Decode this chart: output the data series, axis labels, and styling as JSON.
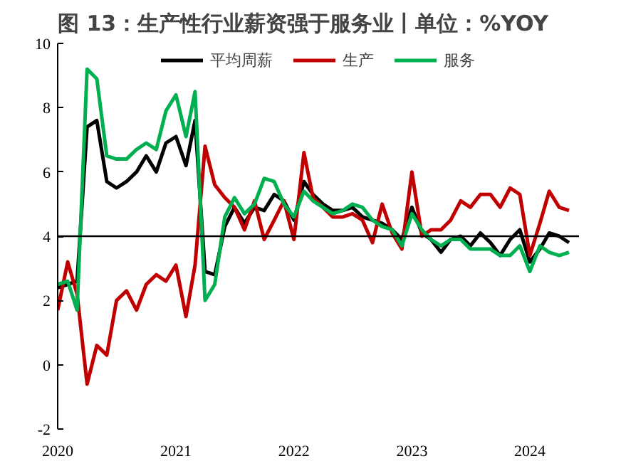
{
  "chart_data": {
    "type": "line",
    "title": "图 13：生产性行业薪资强于服务业丨单位：%YOY",
    "x": [
      "2020-01",
      "2020-02",
      "2020-03",
      "2020-04",
      "2020-05",
      "2020-06",
      "2020-07",
      "2020-08",
      "2020-09",
      "2020-10",
      "2020-11",
      "2020-12",
      "2021-01",
      "2021-02",
      "2021-03",
      "2021-04",
      "2021-05",
      "2021-06",
      "2021-07",
      "2021-08",
      "2021-09",
      "2021-10",
      "2021-11",
      "2021-12",
      "2022-01",
      "2022-02",
      "2022-03",
      "2022-04",
      "2022-05",
      "2022-06",
      "2022-07",
      "2022-08",
      "2022-09",
      "2022-10",
      "2022-11",
      "2022-12",
      "2023-01",
      "2023-02",
      "2023-03",
      "2023-04",
      "2023-05",
      "2023-06",
      "2023-07",
      "2023-08",
      "2023-09",
      "2023-10",
      "2023-11",
      "2023-12",
      "2024-01",
      "2024-02",
      "2024-03",
      "2024-04",
      "2024-05"
    ],
    "series": [
      {
        "name": "平均周薪",
        "color": "#000000",
        "values": [
          2.4,
          2.5,
          2.6,
          7.4,
          7.6,
          5.7,
          5.5,
          5.7,
          6.0,
          6.5,
          6.0,
          6.9,
          7.1,
          6.2,
          7.6,
          2.9,
          2.8,
          4.3,
          4.9,
          4.4,
          4.9,
          4.8,
          5.3,
          5.1,
          4.5,
          5.7,
          5.3,
          5.0,
          4.8,
          4.8,
          4.9,
          4.6,
          4.5,
          4.4,
          4.2,
          3.9,
          4.9,
          4.1,
          3.9,
          3.5,
          3.9,
          4.0,
          3.7,
          4.1,
          3.8,
          3.4,
          3.9,
          4.2,
          3.2,
          3.6,
          4.1,
          4.0,
          3.8
        ]
      },
      {
        "name": "生产",
        "color": "#c00000",
        "values": [
          1.7,
          3.2,
          2.2,
          -0.6,
          0.6,
          0.3,
          2.0,
          2.3,
          1.7,
          2.5,
          2.8,
          2.6,
          3.1,
          1.5,
          3.1,
          6.8,
          5.6,
          5.2,
          4.9,
          4.2,
          5.1,
          3.9,
          4.5,
          5.1,
          3.9,
          6.6,
          5.2,
          4.9,
          4.6,
          4.6,
          4.7,
          4.5,
          3.8,
          5.0,
          4.1,
          3.6,
          6.0,
          4.0,
          4.2,
          4.2,
          4.5,
          5.1,
          4.9,
          5.3,
          5.3,
          4.9,
          5.5,
          5.3,
          3.4,
          4.4,
          5.4,
          4.9,
          4.8
        ]
      },
      {
        "name": "服务",
        "color": "#00b050",
        "values": [
          2.5,
          2.6,
          1.7,
          9.2,
          8.9,
          6.5,
          6.4,
          6.4,
          6.7,
          6.9,
          6.7,
          7.9,
          8.4,
          7.1,
          8.5,
          2.0,
          2.5,
          4.6,
          5.2,
          4.7,
          5.0,
          5.8,
          5.7,
          5.0,
          4.6,
          5.4,
          5.1,
          4.9,
          4.7,
          4.8,
          5.0,
          4.9,
          4.5,
          4.3,
          4.2,
          3.7,
          4.7,
          4.2,
          3.9,
          3.7,
          3.9,
          3.9,
          3.6,
          3.6,
          3.6,
          3.4,
          3.4,
          3.7,
          2.9,
          3.7,
          3.5,
          3.4,
          3.5
        ]
      }
    ],
    "xlim": [
      "2020-01",
      "2024-06"
    ],
    "xticks": [
      {
        "value": "2020-01",
        "label": "2020"
      },
      {
        "value": "2021-01",
        "label": "2021"
      },
      {
        "value": "2022-01",
        "label": "2022"
      },
      {
        "value": "2023-01",
        "label": "2023"
      },
      {
        "value": "2024-01",
        "label": "2024"
      }
    ],
    "ylim": [
      -2,
      10
    ],
    "yticks": [
      -2,
      0,
      2,
      4,
      6,
      8,
      10
    ],
    "ref_lines": [
      {
        "axis": "y",
        "value": 4,
        "color": "#000000"
      }
    ],
    "grid": false,
    "legend": "top",
    "marker": "none",
    "line_style": "solid"
  }
}
